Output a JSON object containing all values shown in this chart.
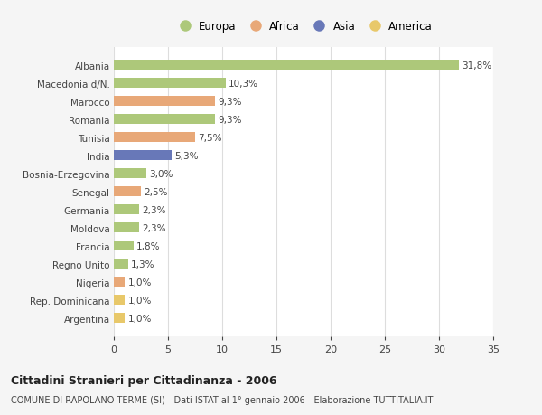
{
  "categories": [
    "Argentina",
    "Rep. Dominicana",
    "Nigeria",
    "Regno Unito",
    "Francia",
    "Moldova",
    "Germania",
    "Senegal",
    "Bosnia-Erzegovina",
    "India",
    "Tunisia",
    "Romania",
    "Marocco",
    "Macedonia d/N.",
    "Albania"
  ],
  "values": [
    1.0,
    1.0,
    1.0,
    1.3,
    1.8,
    2.3,
    2.3,
    2.5,
    3.0,
    5.3,
    7.5,
    9.3,
    9.3,
    10.3,
    31.8
  ],
  "labels": [
    "1,0%",
    "1,0%",
    "1,0%",
    "1,3%",
    "1,8%",
    "2,3%",
    "2,3%",
    "2,5%",
    "3,0%",
    "5,3%",
    "7,5%",
    "9,3%",
    "9,3%",
    "10,3%",
    "31,8%"
  ],
  "colors": [
    "#e8c86a",
    "#e8c86a",
    "#e8a878",
    "#adc87a",
    "#adc87a",
    "#adc87a",
    "#adc87a",
    "#e8a878",
    "#adc87a",
    "#6878b8",
    "#e8a878",
    "#adc87a",
    "#e8a878",
    "#adc87a",
    "#adc87a"
  ],
  "legend_labels": [
    "Europa",
    "Africa",
    "Asia",
    "America"
  ],
  "legend_colors": [
    "#adc87a",
    "#e8a878",
    "#6878b8",
    "#e8c86a"
  ],
  "title": "Cittadini Stranieri per Cittadinanza - 2006",
  "subtitle": "COMUNE DI RAPOLANO TERME (SI) - Dati ISTAT al 1° gennaio 2006 - Elaborazione TUTTITALIA.IT",
  "xlim": [
    0,
    35
  ],
  "xticks": [
    0,
    5,
    10,
    15,
    20,
    25,
    30,
    35
  ],
  "background_color": "#f5f5f5",
  "bar_background": "#ffffff",
  "grid_color": "#dddddd",
  "text_color": "#444444"
}
